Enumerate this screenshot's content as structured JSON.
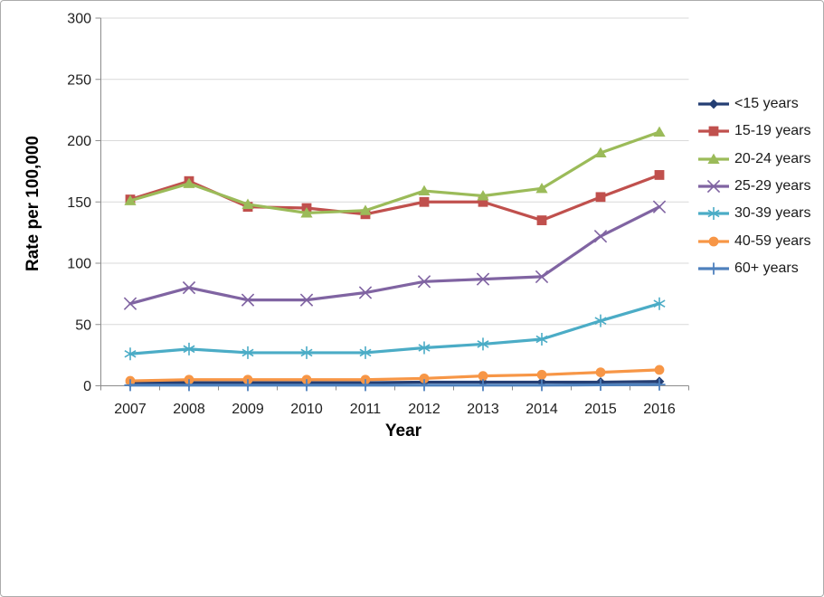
{
  "chart_data": {
    "type": "line",
    "title": "",
    "xlabel": "Year",
    "ylabel": "Rate per 100,000",
    "x_categories": [
      "2007",
      "2008",
      "2009",
      "2010",
      "2011",
      "2012",
      "2013",
      "2014",
      "2015",
      "2016"
    ],
    "y_axis": {
      "min": 0,
      "max": 300,
      "step": 50
    },
    "grid": true,
    "legend_position": "right",
    "plot_colors": {
      "gridline": "#d9d9d9",
      "axis": "#8c8c8c",
      "tick_text": "#1f1f1f"
    },
    "series": [
      {
        "name": "<15 years",
        "marker": "diamond",
        "color": "#243e73",
        "values": [
          2.5,
          2.5,
          2.5,
          2.5,
          2.5,
          3,
          3,
          3,
          3,
          3.5
        ]
      },
      {
        "name": "15-19 years",
        "marker": "square",
        "color": "#c0504d",
        "values": [
          152,
          167,
          146,
          145,
          140,
          150,
          150,
          135,
          154,
          172
        ]
      },
      {
        "name": "20-24 years",
        "marker": "triangle",
        "color": "#9bbb59",
        "values": [
          151,
          165,
          148,
          141,
          143,
          159,
          155,
          161,
          190,
          207
        ]
      },
      {
        "name": "25-29 years",
        "marker": "x",
        "color": "#8064a2",
        "values": [
          67,
          80,
          70,
          70,
          76,
          85,
          87,
          89,
          122,
          146
        ]
      },
      {
        "name": "30-39 years",
        "marker": "asterisk",
        "color": "#4bacc6",
        "values": [
          26,
          30,
          27,
          27,
          27,
          31,
          34,
          38,
          53,
          67
        ]
      },
      {
        "name": "40-59 years",
        "marker": "circle",
        "color": "#f79646",
        "values": [
          4,
          5,
          5,
          5,
          5,
          6,
          8,
          9,
          11,
          13
        ]
      },
      {
        "name": "60+ years",
        "marker": "plus",
        "color": "#4f81bd",
        "values": [
          0.5,
          0.5,
          0.5,
          0.5,
          0.5,
          0.5,
          0.5,
          0.5,
          0.8,
          1
        ]
      }
    ]
  }
}
